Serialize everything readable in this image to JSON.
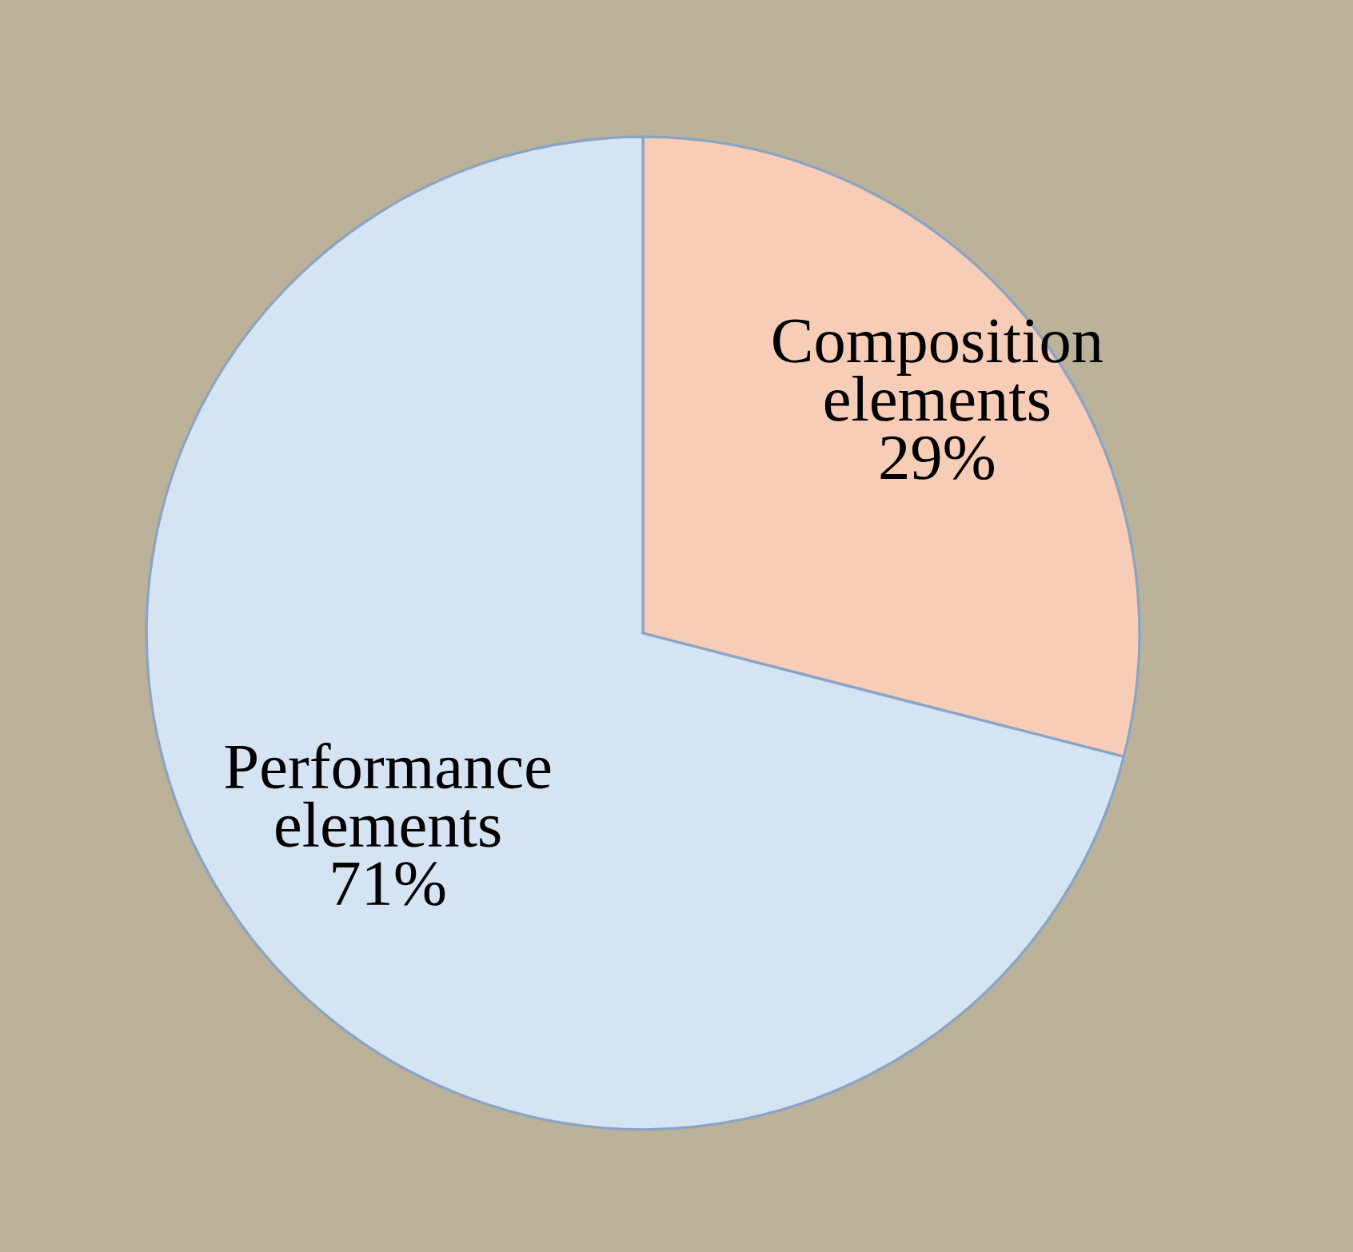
{
  "chart_data": {
    "type": "pie",
    "categories": [
      "Composition elements",
      "Performance elements"
    ],
    "values": [
      29,
      71
    ],
    "value_labels": [
      "29%",
      "71%"
    ],
    "colors": [
      "#f8cdb8",
      "#d5e4f3"
    ],
    "legend": false
  }
}
